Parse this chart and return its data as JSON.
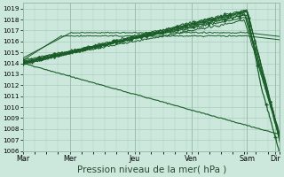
{
  "bg_color": "#cce8dd",
  "grid_color": "#aaccbb",
  "line_color": "#1a5c28",
  "xlabel": "Pression niveau de la mer( hPa )",
  "ylim": [
    1006,
    1019.5
  ],
  "yticks": [
    1006,
    1007,
    1008,
    1009,
    1010,
    1011,
    1012,
    1013,
    1014,
    1015,
    1016,
    1017,
    1018,
    1019
  ],
  "xtick_labels": [
    "Mar",
    "Mer",
    "Jeu",
    "Ven",
    "Sam",
    "Dir"
  ],
  "xlabel_fontsize": 7.5,
  "n_days": 5.4
}
